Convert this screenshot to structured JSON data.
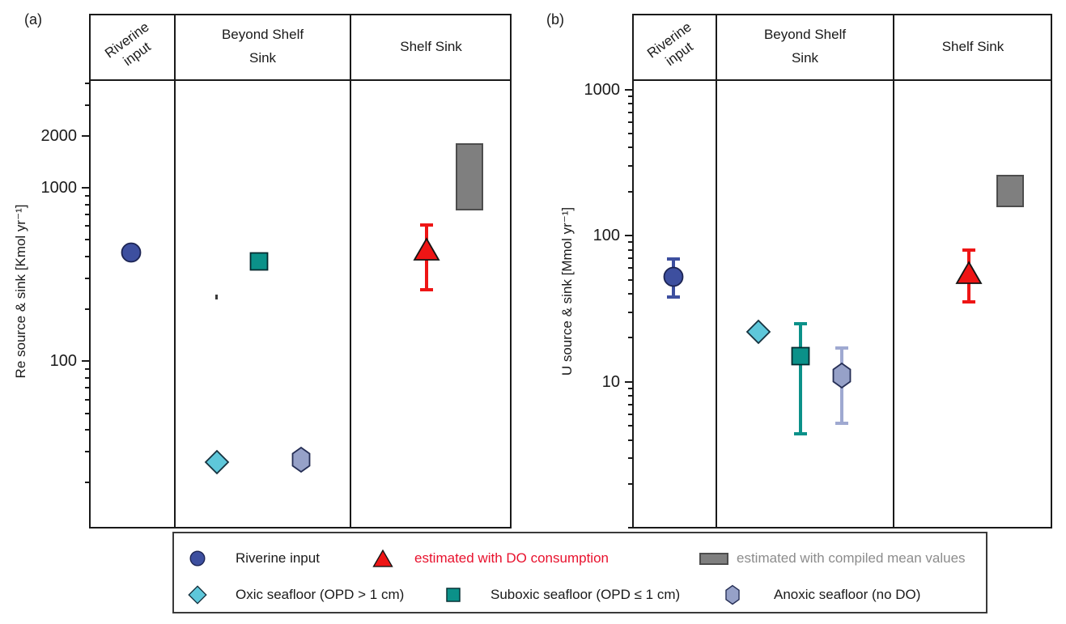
{
  "chart_data": {
    "type": "scatter",
    "description": "Two-panel categorical log-scale budget figure for Re and U sources and sinks",
    "colors": {
      "riverine": "#3d4f9f",
      "oxic": "#5ec7da",
      "suboxic": "#0b9189",
      "anoxic": "#96a1c8",
      "anoxic_err": "#9fa9d1",
      "do_red": "#ee1515",
      "red_text": "#e8112d",
      "compiled_gray": "#7f7f7f",
      "gray_text": "#8c8c8c"
    },
    "panels": [
      {
        "panel_label": "(a)",
        "y_axis_title": "Re source & sink [Kmol yr⁻¹]",
        "y_unit": "Kmol yr⁻¹",
        "scale": "log",
        "ylim": [
          10.8,
          4180
        ],
        "labeled_ticks": [
          {
            "value": 100,
            "label": "100"
          },
          {
            "value": 1000,
            "label": "1000"
          },
          {
            "value": 2000,
            "label": "2000"
          }
        ],
        "columns": [
          {
            "label": "Riverine input",
            "label_lines": [
              "Riverine",
              "input"
            ],
            "rotated": true
          },
          {
            "label": "Beyond Shelf Sink",
            "label_lines": [
              "Beyond Shelf",
              "Sink"
            ],
            "rotated": false
          },
          {
            "label": "Shelf Sink",
            "label_lines": [
              "Shelf Sink"
            ],
            "rotated": false
          }
        ],
        "markers": [
          {
            "series": "Riverine input",
            "column": "Riverine input",
            "shape": "circle",
            "color_key": "riverine",
            "value": 425,
            "x_frac": 0.1
          },
          {
            "series": "Oxic seafloor (OPD > 1 cm)",
            "column": "Beyond Shelf Sink",
            "shape": "diamond",
            "color_key": "oxic",
            "value": 26,
            "x_frac": 0.302
          },
          {
            "series": "Suboxic seafloor (OPD ≤ 1 cm)",
            "column": "Beyond Shelf Sink",
            "shape": "square",
            "color_key": "suboxic",
            "value": 375,
            "x_frac": 0.402
          },
          {
            "series": "Anoxic seafloor (no DO)",
            "column": "Beyond Shelf Sink",
            "shape": "hexagon",
            "color_key": "anoxic",
            "value": 27,
            "x_frac": 0.502
          },
          {
            "series": "estimated with DO consumption",
            "column": "Shelf Sink",
            "shape": "triangle",
            "color_key": "do_red",
            "value": 440,
            "err_low": 258,
            "err_high": 610,
            "err_color_key": "do_red",
            "x_frac": 0.799
          },
          {
            "series": "estimated with compiled mean values",
            "column": "Shelf Sink",
            "shape": "rect",
            "color_key": "compiled_gray",
            "value_low": 740,
            "value_high": 1810,
            "x_frac": 0.9
          },
          {
            "series": "stray mark",
            "column": "Beyond Shelf Sink",
            "shape": "speck",
            "value": 233,
            "x_frac": 0.301
          }
        ]
      },
      {
        "panel_label": "(b)",
        "y_axis_title": "U source & sink [Mmol yr⁻¹]",
        "y_unit": "Mmol yr⁻¹",
        "scale": "log",
        "ylim": [
          0.99,
          1160
        ],
        "labeled_ticks": [
          {
            "value": 10,
            "label": "10"
          },
          {
            "value": 100,
            "label": "100"
          },
          {
            "value": 1000,
            "label": "1000"
          }
        ],
        "columns": [
          {
            "label": "Riverine input",
            "label_lines": [
              "Riverine",
              "input"
            ],
            "rotated": true
          },
          {
            "label": "Beyond Shelf Sink",
            "label_lines": [
              "Beyond Shelf",
              "Sink"
            ],
            "rotated": false
          },
          {
            "label": "Shelf Sink",
            "label_lines": [
              "Shelf Sink"
            ],
            "rotated": false
          }
        ],
        "markers": [
          {
            "series": "Riverine input",
            "column": "Riverine input",
            "shape": "circle",
            "color_key": "riverine",
            "value": 52,
            "err_low": 38,
            "err_high": 69,
            "err_color_key": "riverine",
            "x_frac": 0.098
          },
          {
            "series": "Oxic seafloor (OPD > 1 cm)",
            "column": "Beyond Shelf Sink",
            "shape": "diamond",
            "color_key": "oxic",
            "value": 22,
            "x_frac": 0.301
          },
          {
            "series": "Suboxic seafloor (OPD ≤ 1 cm)",
            "column": "Beyond Shelf Sink",
            "shape": "square",
            "color_key": "suboxic",
            "value": 15,
            "err_low": 4.4,
            "err_high": 25,
            "err_color_key": "suboxic",
            "x_frac": 0.401
          },
          {
            "series": "Anoxic seafloor (no DO)",
            "column": "Beyond Shelf Sink",
            "shape": "hexagon",
            "color_key": "anoxic",
            "value": 11,
            "err_low": 5.2,
            "err_high": 17,
            "err_color_key": "anoxic_err",
            "x_frac": 0.499
          },
          {
            "series": "estimated with DO consumption",
            "column": "Shelf Sink",
            "shape": "triangle",
            "color_key": "do_red",
            "value": 56,
            "err_low": 35,
            "err_high": 80,
            "err_color_key": "do_red",
            "x_frac": 0.802
          },
          {
            "series": "estimated with compiled mean values",
            "column": "Shelf Sink",
            "shape": "rect",
            "color_key": "compiled_gray",
            "value_low": 156,
            "value_high": 260,
            "x_frac": 0.9
          }
        ]
      }
    ],
    "legend": {
      "items": [
        {
          "label": "Riverine input",
          "shape": "circle",
          "color_key": "riverine",
          "text_color": "#1a1a1a"
        },
        {
          "label": "estimated with DO consumption",
          "shape": "triangle",
          "color_key": "do_red",
          "text_color": "#e8112d"
        },
        {
          "label": "estimated with compiled mean values",
          "shape": "rect",
          "color_key": "compiled_gray",
          "text_color": "#8c8c8c"
        },
        {
          "label": "Oxic seafloor (OPD > 1 cm)",
          "shape": "diamond",
          "color_key": "oxic",
          "text_color": "#1a1a1a"
        },
        {
          "label": "Suboxic seafloor (OPD ≤ 1 cm)",
          "shape": "square",
          "color_key": "suboxic",
          "text_color": "#1a1a1a"
        },
        {
          "label": "Anoxic seafloor (no DO)",
          "shape": "hexagon",
          "color_key": "anoxic",
          "text_color": "#1a1a1a"
        }
      ]
    }
  }
}
